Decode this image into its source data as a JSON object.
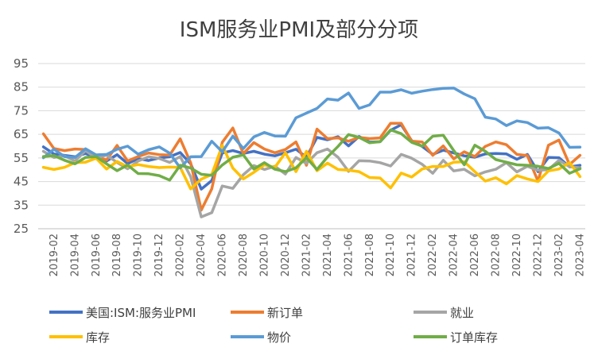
{
  "chart_data": {
    "type": "line",
    "title": "ISM服务业PMI及部分分项",
    "xlabel": "",
    "ylabel": "",
    "ylim": [
      25,
      95
    ],
    "yticks": [
      25,
      35,
      45,
      55,
      65,
      75,
      85,
      95
    ],
    "grid": "horizontal",
    "legend_position": "bottom",
    "x": [
      "2019-01",
      "2019-02",
      "2019-03",
      "2019-04",
      "2019-05",
      "2019-06",
      "2019-07",
      "2019-08",
      "2019-09",
      "2019-10",
      "2019-11",
      "2019-12",
      "2020-01",
      "2020-02",
      "2020-03",
      "2020-04",
      "2020-05",
      "2020-06",
      "2020-07",
      "2020-08",
      "2020-09",
      "2020-10",
      "2020-11",
      "2020-12",
      "2021-01",
      "2021-02",
      "2021-03",
      "2021-04",
      "2021-05",
      "2021-06",
      "2021-07",
      "2021-08",
      "2021-09",
      "2021-10",
      "2021-11",
      "2021-12",
      "2022-01",
      "2022-02",
      "2022-03",
      "2022-04",
      "2022-05",
      "2022-06",
      "2022-07",
      "2022-08",
      "2022-09",
      "2022-10",
      "2022-11",
      "2022-12",
      "2023-01",
      "2023-02",
      "2023-03",
      "2023-04"
    ],
    "x_tick_labels": [
      "2019-02",
      "2019-04",
      "2019-06",
      "2019-08",
      "2019-10",
      "2019-12",
      "2020-02",
      "2020-04",
      "2020-06",
      "2020-08",
      "2020-10",
      "2020-12",
      "2021-02",
      "2021-04",
      "2021-06",
      "2021-08",
      "2021-10",
      "2021-12",
      "2022-02",
      "2022-04",
      "2022-06",
      "2022-08",
      "2022-10",
      "2022-12",
      "2023-02",
      "2023-04"
    ],
    "series": [
      {
        "name": "美国:ISM:服务业PMI",
        "color": "#4472C4",
        "values": [
          59.7,
          56.7,
          56.1,
          55.5,
          56.9,
          55.1,
          53.7,
          56.4,
          52.6,
          54.7,
          53.9,
          55.0,
          55.5,
          57.3,
          52.5,
          41.8,
          45.4,
          57.1,
          58.1,
          56.9,
          57.8,
          56.6,
          55.9,
          57.2,
          58.7,
          55.3,
          63.7,
          62.7,
          64.0,
          60.1,
          64.1,
          61.7,
          61.9,
          66.7,
          69.1,
          62.3,
          59.9,
          56.5,
          58.3,
          57.1,
          55.9,
          55.3,
          56.7,
          56.9,
          56.7,
          54.4,
          56.5,
          49.2,
          55.2,
          55.1,
          51.2,
          51.9
        ]
      },
      {
        "name": "新订单",
        "color": "#ED7D31",
        "values": [
          65.2,
          59.0,
          58.1,
          58.8,
          58.6,
          55.8,
          54.1,
          60.3,
          53.7,
          55.6,
          57.1,
          56.4,
          56.2,
          63.1,
          52.9,
          32.9,
          41.9,
          61.6,
          67.7,
          56.8,
          61.5,
          58.8,
          57.2,
          58.6,
          61.8,
          51.9,
          67.2,
          63.2,
          63.5,
          62.1,
          63.7,
          63.2,
          63.5,
          69.7,
          69.7,
          62.1,
          61.8,
          56.1,
          60.1,
          54.6,
          57.6,
          55.6,
          59.9,
          61.8,
          60.6,
          56.5,
          56.0,
          45.2,
          60.4,
          62.6,
          52.2,
          56.1
        ]
      },
      {
        "name": "就业",
        "color": "#A5A5A5",
        "values": [
          57.8,
          55.2,
          55.9,
          53.7,
          58.1,
          55.0,
          56.2,
          53.1,
          50.4,
          53.7,
          55.5,
          54.8,
          53.1,
          55.6,
          47.0,
          30.0,
          31.8,
          43.1,
          42.1,
          47.9,
          51.8,
          50.1,
          51.5,
          48.2,
          55.2,
          52.7,
          57.2,
          58.8,
          55.3,
          49.3,
          53.8,
          53.7,
          53.0,
          51.6,
          56.5,
          54.9,
          52.3,
          48.5,
          54.0,
          49.5,
          50.2,
          47.4,
          49.1,
          50.2,
          53.0,
          49.1,
          51.5,
          49.8,
          50.0,
          54.0,
          51.3,
          50.8
        ]
      },
      {
        "name": "库存",
        "color": "#FFC000",
        "values": [
          51.0,
          50.1,
          51.0,
          53.0,
          53.2,
          54.9,
          50.3,
          53.5,
          51.3,
          52.2,
          51.4,
          50.9,
          51.1,
          51.0,
          41.9,
          46.0,
          48.0,
          60.3,
          50.7,
          46.1,
          48.9,
          52.1,
          51.0,
          57.2,
          49.2,
          57.8,
          49.6,
          52.8,
          50.1,
          49.8,
          49.2,
          46.7,
          46.5,
          42.3,
          48.6,
          46.9,
          50.3,
          51.4,
          51.4,
          53.2,
          53.4,
          49.2,
          45.2,
          46.6,
          44.0,
          47.5,
          46.1,
          45.0,
          49.5,
          50.3,
          53.0,
          47.1
        ]
      },
      {
        "name": "物价",
        "color": "#5B9BD5",
        "values": [
          55.1,
          58.7,
          55.6,
          55.2,
          58.9,
          56.3,
          56.5,
          58.7,
          60.0,
          56.6,
          58.5,
          59.7,
          57.0,
          50.8,
          55.5,
          55.6,
          62.1,
          57.6,
          64.2,
          59.0,
          63.9,
          65.8,
          64.3,
          64.2,
          72.0,
          74.0,
          76.0,
          80.0,
          79.5,
          82.5,
          76.0,
          77.5,
          82.9,
          82.9,
          83.9,
          82.4,
          83.3,
          84.0,
          84.5,
          84.6,
          82.1,
          80.1,
          72.3,
          71.5,
          68.7,
          70.7,
          70.0,
          67.6,
          67.8,
          65.6,
          59.5,
          59.6
        ]
      },
      {
        "name": "订单库存",
        "color": "#70AD47",
        "values": [
          55.6,
          56.0,
          54.0,
          52.5,
          55.2,
          55.6,
          52.5,
          49.6,
          52.0,
          48.4,
          48.3,
          47.5,
          45.6,
          51.9,
          50.7,
          48.1,
          47.6,
          52.0,
          55.3,
          56.3,
          50.3,
          53.0,
          50.2,
          49.2,
          50.8,
          55.1,
          50.1,
          55.4,
          59.9,
          64.9,
          63.7,
          61.4,
          61.9,
          66.9,
          65.3,
          61.6,
          60.0,
          64.2,
          64.6,
          58.1,
          52.1,
          60.4,
          57.8,
          54.3,
          53.2,
          52.1,
          51.9,
          51.5,
          50.5,
          52.7,
          48.5,
          50.4
        ]
      }
    ]
  }
}
